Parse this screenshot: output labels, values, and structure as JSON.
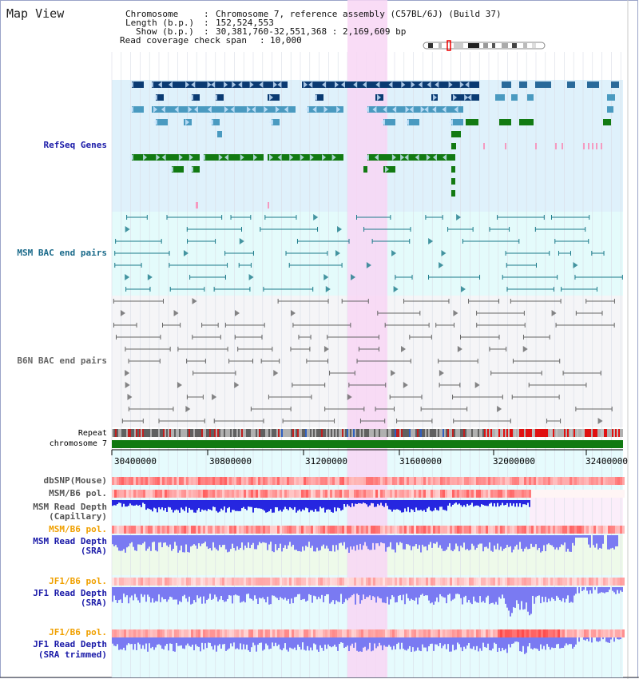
{
  "view": {
    "title": "Map View"
  },
  "info": {
    "chromosome_key": "Chromosome",
    "chromosome_val": "Chromosome 7, reference assembly (C57BL/6J) (Build 37)",
    "length_key": "Length (b.p.)",
    "length_val": "152,524,553",
    "show_key": "Show (b.p.)",
    "show_val": "30,381,760-32,551,368 : 2,169,609 bp",
    "coverage_key": "Read coverage check span",
    "coverage_val": "10,000"
  },
  "tracks": {
    "refseq": "RefSeq Genes",
    "msm_bac": "MSM BAC end pairs",
    "b6n_bac": "B6N BAC end pairs",
    "repeat": "Repeat",
    "chromosome": "chromosome 7",
    "dbsnp": "dbSNP(Mouse)",
    "msm_pol1": "MSM/B6 pol.",
    "msm_depth_cap_1": "MSM Read Depth",
    "msm_depth_cap_2": "(Capillary)",
    "msm_pol2": "MSM/B6 pol.",
    "msm_depth_sra_1": "MSM Read Depth",
    "msm_depth_sra_2": "(SRA)",
    "jf1_pol1": "JF1/B6 pol.",
    "jf1_depth_sra_1": "JF1 Read Depth",
    "jf1_depth_sra_2": "(SRA)",
    "jf1_pol2": "JF1/B6 pol.",
    "jf1_depth_trim_1": "JF1 Read Depth",
    "jf1_depth_trim_2": "(SRA trimmed)"
  },
  "axis": {
    "ticks": [
      "30400000",
      "30800000",
      "31200000",
      "31600000",
      "32000000",
      "32400000"
    ]
  },
  "colors": {
    "highlight": "#f8d6f4",
    "refseq_bg": "#dff1fb",
    "msm_bg": "#e4fbfb",
    "b6n_bg": "#f5f5f7",
    "dark_blue": "#0a3a72",
    "mid_blue": "#4a9ac0",
    "green": "#127a12",
    "teal": "#1a7a8a",
    "gray": "#666666",
    "depth_dark": "#2626e0",
    "depth_light": "#7a7af2"
  }
}
